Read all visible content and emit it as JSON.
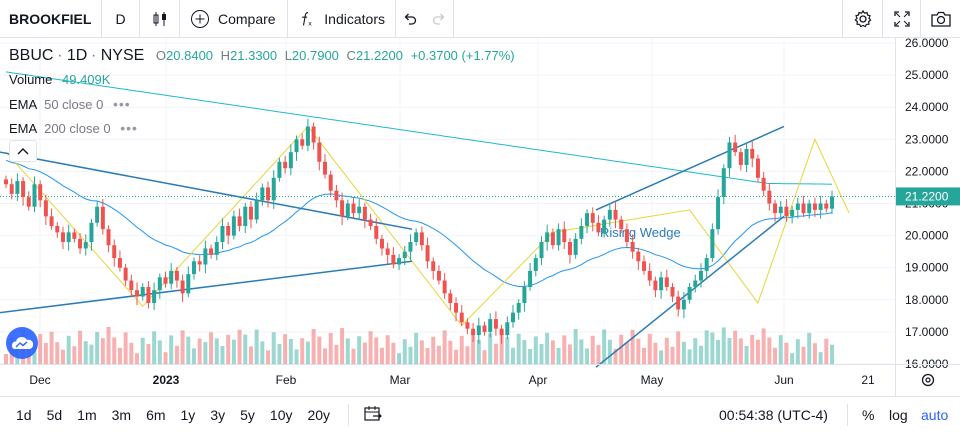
{
  "toolbar": {
    "symbol": "BROOKFIEL",
    "interval": "D",
    "compare_label": "Compare",
    "indicators_label": "Indicators"
  },
  "legend": {
    "ticker": "BBUC",
    "interval": "1D",
    "exchange": "NYSE",
    "o_label": "O",
    "o_value": "20.8400",
    "h_label": "H",
    "h_value": "21.3300",
    "l_label": "L",
    "l_value": "20.7900",
    "c_label": "C",
    "c_value": "21.2200",
    "change": "+0.3700 (+1.77%)",
    "volume_label": "Volume",
    "volume_value": "49.409K",
    "ema50_label": "EMA",
    "ema50_params": "50 close 0",
    "ema200_label": "EMA",
    "ema200_params": "200 close 0"
  },
  "price_axis": [
    "26.0000",
    "25.0000",
    "24.0000",
    "23.0000",
    "22.0000",
    "21.0000",
    "20.0000",
    "19.0000",
    "18.0000",
    "17.0000",
    "16.0000"
  ],
  "last_price": "21.2200",
  "time_axis": [
    {
      "label": "Dec",
      "bold": false
    },
    {
      "label": "2023",
      "bold": true
    },
    {
      "label": "Feb",
      "bold": false
    },
    {
      "label": "Mar",
      "bold": false
    },
    {
      "label": "Apr",
      "bold": false
    },
    {
      "label": "May",
      "bold": false
    },
    {
      "label": "Jun",
      "bold": false
    },
    {
      "label": "21",
      "bold": false
    }
  ],
  "pattern_label": "Rising Wedge",
  "bottom": {
    "ranges": [
      "1d",
      "5d",
      "1m",
      "3m",
      "6m",
      "1y",
      "3y",
      "5y",
      "10y",
      "20y"
    ],
    "clock": "00:54:38 (UTC-4)",
    "percent_label": "%",
    "log_label": "log",
    "auto_label": "auto"
  },
  "colors": {
    "up": "#26a69a",
    "down": "#ef5350",
    "ema": "#2196f3",
    "ema200": "#22b8cf",
    "accent": "#2962ff",
    "zigzag": "#e6d63a"
  },
  "chart_data": {
    "type": "candlestick",
    "price_range": [
      16,
      26
    ],
    "closes": [
      21.6,
      21.3,
      21.7,
      21.2,
      20.9,
      21.6,
      21.1,
      20.6,
      20.3,
      20.1,
      19.8,
      20.1,
      19.9,
      19.6,
      19.8,
      20.4,
      20.9,
      20.2,
      19.7,
      19.3,
      19.0,
      18.6,
      18.3,
      18.1,
      18.4,
      17.9,
      18.3,
      18.7,
      18.5,
      18.9,
      18.6,
      18.2,
      18.8,
      19.2,
      19.1,
      19.6,
      19.4,
      19.8,
      20.3,
      20.0,
      20.6,
      20.3,
      20.9,
      20.5,
      21.1,
      21.5,
      21.1,
      21.8,
      22.3,
      22.1,
      22.6,
      23.0,
      22.8,
      23.4,
      22.9,
      22.3,
      21.9,
      21.4,
      21.1,
      20.6,
      21.0,
      20.7,
      20.9,
      20.5,
      20.3,
      19.9,
      19.6,
      19.4,
      19.1,
      19.3,
      19.5,
      19.8,
      20.1,
      19.7,
      19.2,
      18.9,
      18.6,
      18.2,
      17.9,
      17.6,
      17.3,
      17.1,
      16.9,
      17.2,
      17.0,
      17.4,
      17.1,
      16.9,
      17.3,
      17.6,
      17.9,
      18.4,
      18.9,
      19.3,
      19.8,
      20.1,
      19.7,
      20.2,
      19.8,
      19.4,
      19.9,
      20.3,
      20.7,
      20.4,
      20.1,
      20.5,
      20.8,
      20.5,
      20.2,
      19.8,
      19.5,
      19.2,
      18.9,
      18.6,
      18.3,
      18.7,
      18.4,
      18.1,
      17.7,
      18.0,
      18.4,
      18.6,
      18.9,
      19.3,
      20.2,
      21.2,
      22.1,
      22.9,
      22.6,
      22.2,
      22.7,
      22.4,
      21.8,
      21.4,
      21.0,
      20.7,
      20.9,
      20.6,
      20.8,
      21.0,
      20.7,
      21.0,
      20.8,
      21.0,
      20.84,
      21.22
    ]
  }
}
